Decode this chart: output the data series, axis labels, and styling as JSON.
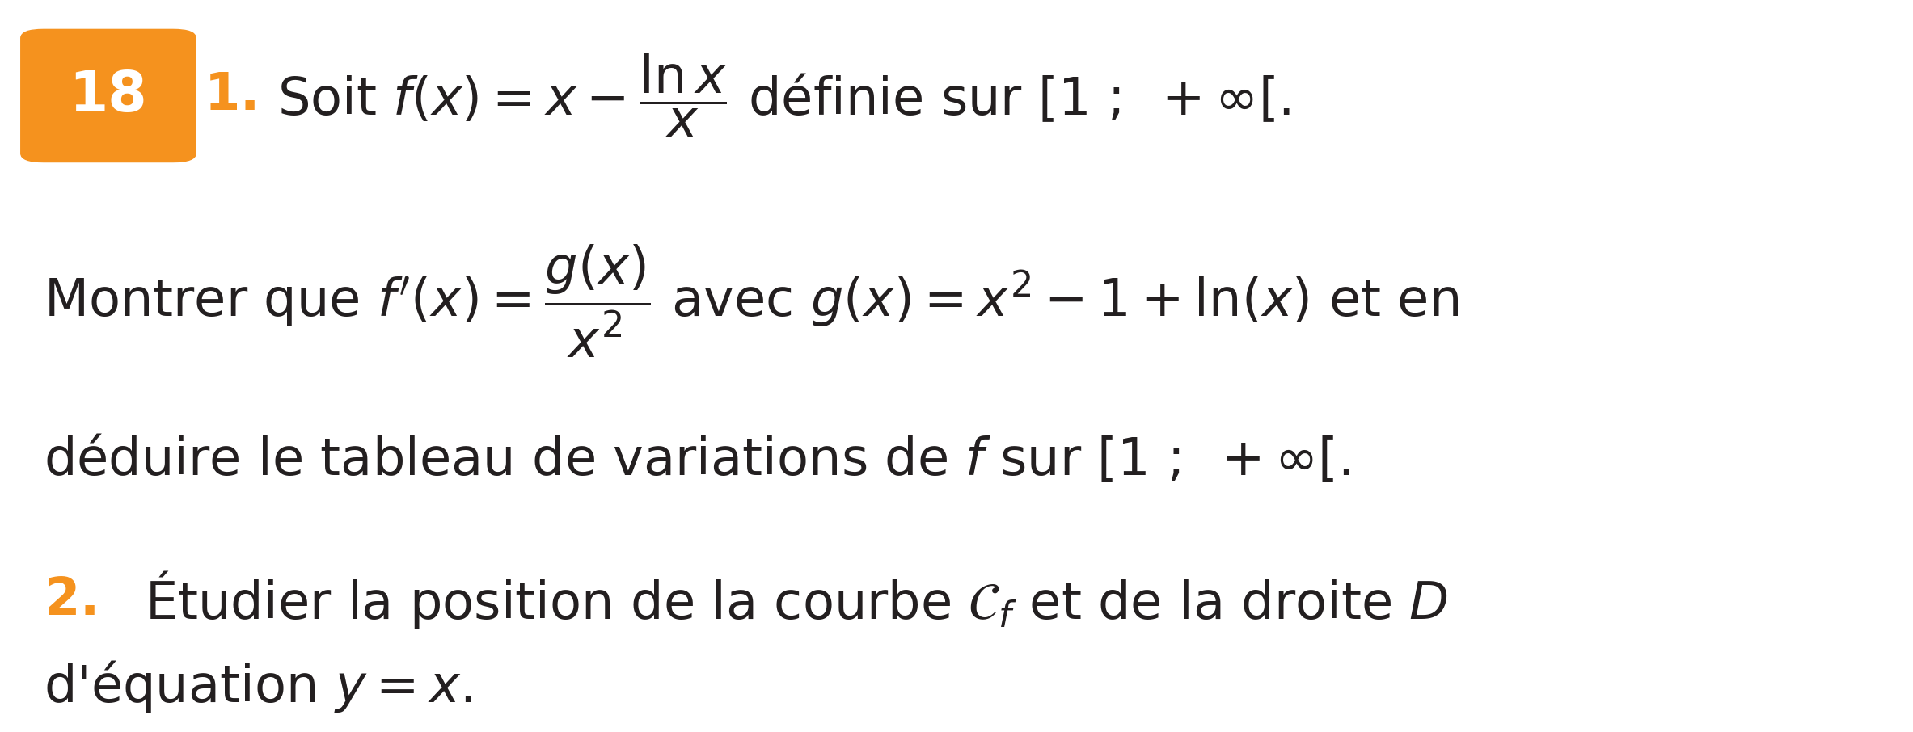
{
  "bg_color": "#ffffff",
  "orange_color": "#F5921E",
  "text_color": "#231F20",
  "figsize": [
    23.66,
    9.06
  ],
  "dpi": 100
}
